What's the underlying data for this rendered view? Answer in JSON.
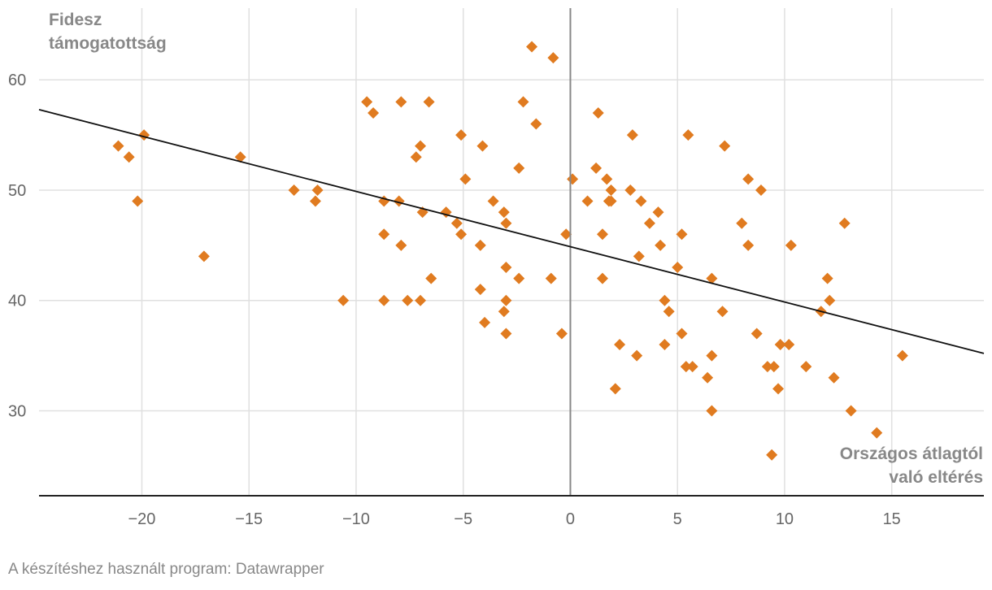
{
  "chart_data": {
    "type": "scatter",
    "title": "",
    "ylabel_lines": [
      "Fidesz",
      "támogatottság"
    ],
    "xlabel_lines": [
      "Országos átlagtól",
      "való eltérés"
    ],
    "xlim": [
      -24.8,
      19.3
    ],
    "ylim": [
      22.3,
      66.5
    ],
    "x_ticks": [
      -20,
      -15,
      -10,
      -5,
      0,
      5,
      10,
      15
    ],
    "x_tick_labels": [
      "−20",
      "−15",
      "−10",
      "−5",
      "0",
      "5",
      "10",
      "15"
    ],
    "y_ticks": [
      30,
      40,
      50,
      60
    ],
    "y_tick_labels": [
      "30",
      "40",
      "50",
      "60"
    ],
    "grid": true,
    "zero_line_x": 0,
    "trendline": {
      "x": [
        -24.8,
        19.3
      ],
      "y": [
        57.3,
        35.2
      ]
    },
    "marker": "diamond",
    "point_color": "#e07b20",
    "line_color": "#111111",
    "points": [
      [
        -21.1,
        54
      ],
      [
        -20.6,
        53
      ],
      [
        -19.9,
        55
      ],
      [
        -20.2,
        49
      ],
      [
        -17.1,
        44
      ],
      [
        -15.4,
        53
      ],
      [
        -12.9,
        50
      ],
      [
        -11.8,
        50
      ],
      [
        -11.9,
        49
      ],
      [
        -10.6,
        40
      ],
      [
        -9.5,
        58
      ],
      [
        -9.2,
        57
      ],
      [
        -7.9,
        58
      ],
      [
        -6.6,
        58
      ],
      [
        -8.7,
        49
      ],
      [
        -8.0,
        49
      ],
      [
        -7.2,
        53
      ],
      [
        -7.0,
        54
      ],
      [
        -6.9,
        48
      ],
      [
        -8.7,
        46
      ],
      [
        -7.9,
        45
      ],
      [
        -8.7,
        40
      ],
      [
        -7.6,
        40
      ],
      [
        -7.0,
        40
      ],
      [
        -6.5,
        42
      ],
      [
        -5.1,
        55
      ],
      [
        -4.9,
        51
      ],
      [
        -5.8,
        48
      ],
      [
        -5.3,
        47
      ],
      [
        -5.1,
        46
      ],
      [
        -4.1,
        54
      ],
      [
        -4.2,
        45
      ],
      [
        -4.2,
        41
      ],
      [
        -4.0,
        38
      ],
      [
        -3.6,
        49
      ],
      [
        -3.1,
        48
      ],
      [
        -3.0,
        47
      ],
      [
        -3.0,
        43
      ],
      [
        -3.0,
        40
      ],
      [
        -3.1,
        39
      ],
      [
        -3.0,
        37
      ],
      [
        -2.4,
        52
      ],
      [
        -2.4,
        42
      ],
      [
        -2.2,
        58
      ],
      [
        -1.8,
        63
      ],
      [
        -1.6,
        56
      ],
      [
        -0.8,
        62
      ],
      [
        -0.9,
        42
      ],
      [
        -0.4,
        37
      ],
      [
        -0.2,
        46
      ],
      [
        0.1,
        51
      ],
      [
        0.8,
        49
      ],
      [
        1.2,
        52
      ],
      [
        1.3,
        57
      ],
      [
        1.5,
        46
      ],
      [
        1.5,
        42
      ],
      [
        1.7,
        51
      ],
      [
        1.8,
        49
      ],
      [
        1.9,
        50
      ],
      [
        1.9,
        49
      ],
      [
        2.1,
        32
      ],
      [
        2.3,
        36
      ],
      [
        2.8,
        50
      ],
      [
        2.9,
        55
      ],
      [
        3.1,
        35
      ],
      [
        3.2,
        44
      ],
      [
        3.3,
        49
      ],
      [
        3.7,
        47
      ],
      [
        4.1,
        48
      ],
      [
        4.2,
        45
      ],
      [
        4.4,
        40
      ],
      [
        4.4,
        36
      ],
      [
        4.6,
        39
      ],
      [
        5.0,
        43
      ],
      [
        5.2,
        46
      ],
      [
        5.2,
        37
      ],
      [
        5.4,
        34
      ],
      [
        5.5,
        55
      ],
      [
        5.7,
        34
      ],
      [
        6.4,
        33
      ],
      [
        6.6,
        42
      ],
      [
        6.6,
        35
      ],
      [
        6.6,
        30
      ],
      [
        7.2,
        54
      ],
      [
        7.1,
        39
      ],
      [
        8.0,
        47
      ],
      [
        8.3,
        51
      ],
      [
        8.3,
        45
      ],
      [
        8.7,
        37
      ],
      [
        8.9,
        50
      ],
      [
        9.2,
        34
      ],
      [
        9.4,
        26
      ],
      [
        9.5,
        34
      ],
      [
        9.7,
        32
      ],
      [
        9.8,
        36
      ],
      [
        10.2,
        36
      ],
      [
        10.3,
        45
      ],
      [
        11.0,
        34
      ],
      [
        11.7,
        39
      ],
      [
        12.0,
        42
      ],
      [
        12.1,
        40
      ],
      [
        12.3,
        33
      ],
      [
        12.8,
        47
      ],
      [
        13.1,
        30
      ],
      [
        14.3,
        28
      ],
      [
        15.5,
        35
      ]
    ]
  },
  "footer": {
    "credit": "A készítéshez használt program: Datawrapper"
  }
}
